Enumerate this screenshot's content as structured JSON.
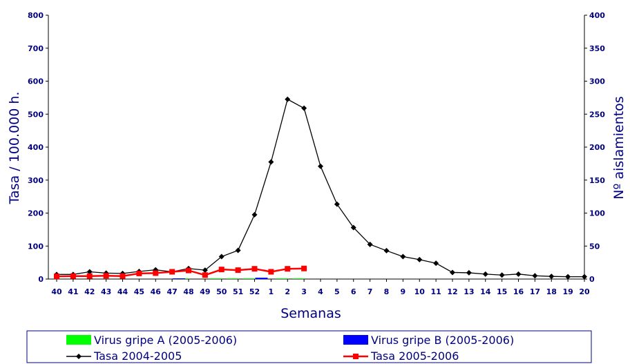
{
  "chart_data": {
    "type": "line",
    "xlabel": "Semanas",
    "ylabel_left": "Tasa / 100.000 h.",
    "ylabel_right": "Nº aislamientos",
    "ylim_left": [
      0,
      800
    ],
    "ylim_right": [
      0,
      400
    ],
    "yticks_left": [
      "0",
      "100",
      "200",
      "300",
      "400",
      "500",
      "600",
      "700",
      "800"
    ],
    "yticks_right": [
      "0",
      "50",
      "100",
      "150",
      "200",
      "250",
      "300",
      "350",
      "400"
    ],
    "categories": [
      "40",
      "41",
      "42",
      "43",
      "44",
      "45",
      "46",
      "47",
      "48",
      "49",
      "50",
      "51",
      "52",
      "1",
      "2",
      "3",
      "4",
      "5",
      "6",
      "7",
      "8",
      "9",
      "10",
      "11",
      "12",
      "13",
      "14",
      "15",
      "16",
      "17",
      "18",
      "19",
      "20"
    ],
    "grid": false,
    "legend_position": "bottom",
    "series": [
      {
        "name": "Virus gripe A (2005-2006)",
        "kind": "bar",
        "axis": "right",
        "color": "#00ff00",
        "values": [
          0,
          0,
          0,
          0,
          0,
          0,
          0,
          0,
          1,
          0,
          1,
          1,
          1,
          0,
          1,
          1,
          null,
          null,
          null,
          null,
          null,
          null,
          null,
          null,
          null,
          null,
          null,
          null,
          null,
          null,
          null,
          null,
          null
        ]
      },
      {
        "name": "Virus gripe B (2005-2006)",
        "kind": "bar",
        "axis": "right",
        "color": "#0000ff",
        "values": [
          0,
          0,
          0,
          0,
          0,
          0,
          0,
          1,
          0,
          0,
          0,
          0,
          2,
          0,
          0,
          0,
          null,
          null,
          null,
          null,
          null,
          null,
          null,
          null,
          null,
          null,
          null,
          null,
          null,
          null,
          null,
          null,
          null
        ]
      },
      {
        "name": "Tasa 2004-2005",
        "kind": "line",
        "axis": "left",
        "color": "#000000",
        "marker": "diamond",
        "values": [
          14,
          14,
          22,
          18,
          17,
          23,
          28,
          22,
          32,
          27,
          68,
          87,
          195,
          355,
          545,
          518,
          342,
          227,
          156,
          105,
          86,
          68,
          59,
          48,
          20,
          19,
          15,
          12,
          15,
          10,
          8,
          7,
          7
        ]
      },
      {
        "name": "Tasa 2005-2006",
        "kind": "line",
        "axis": "left",
        "color": "#ff0000",
        "marker": "square",
        "values": [
          8,
          9,
          9,
          10,
          9,
          17,
          18,
          22,
          26,
          12,
          29,
          27,
          31,
          22,
          31,
          32,
          null,
          null,
          null,
          null,
          null,
          null,
          null,
          null,
          null,
          null,
          null,
          null,
          null,
          null,
          null,
          null,
          null
        ]
      }
    ]
  }
}
